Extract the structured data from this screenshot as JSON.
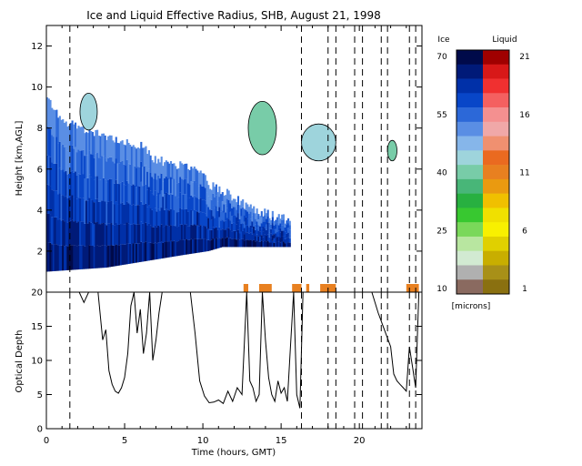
{
  "chart_data": [
    {
      "type": "heatmap",
      "title": "Ice and Liquid Effective Radius, SHB, August 21, 1998",
      "xlabel": "",
      "ylabel": "Height [km,AGL]",
      "xlim": [
        0,
        24
      ],
      "ylim": [
        0,
        13
      ],
      "yticks": [
        2,
        4,
        6,
        8,
        10,
        12
      ],
      "vertical_lines_hours": [
        1.5,
        16.3,
        18.0,
        18.5,
        19.7,
        20.2,
        21.4,
        21.8,
        23.2,
        23.6
      ],
      "colorbar": {
        "ice_label": "Ice",
        "liquid_label": "Liquid",
        "units": "[microns]",
        "ice_ticks": [
          "70",
          "55",
          "40",
          "25",
          "10"
        ],
        "liquid_ticks": [
          "21",
          "16",
          "11",
          "6",
          "1"
        ],
        "ice_colors": [
          "#000a4a",
          "#001a78",
          "#0030a8",
          "#0846c8",
          "#2c68d8",
          "#5a8ee4",
          "#86b6ea",
          "#9ed4dc",
          "#78cca8",
          "#48b678",
          "#28b040",
          "#38c830",
          "#7ad85a",
          "#b8e6a0",
          "#d2ead2",
          "#b0b0b0",
          "#8a6a60"
        ],
        "liquid_colors": [
          "#a00000",
          "#d81818",
          "#f03030",
          "#f46060",
          "#f49090",
          "#f0a8a8",
          "#f09070",
          "#ea6a20",
          "#e88020",
          "#ea9a10",
          "#f0c000",
          "#f0e000",
          "#f8f000",
          "#e0d000",
          "#c8ae00",
          "#a89018",
          "#8a7010"
        ]
      },
      "features": {
        "ice_cloud_base_km": [
          [
            0,
            1.0
          ],
          [
            3.8,
            1.2
          ],
          [
            8.6,
            1.8
          ],
          [
            10.3,
            2.0
          ],
          [
            11.2,
            2.2
          ],
          [
            15.4,
            2.2
          ]
        ],
        "ice_cloud_top_km": [
          [
            0,
            9.5
          ],
          [
            1.0,
            8.4
          ],
          [
            3.0,
            7.8
          ],
          [
            4.5,
            7.5
          ],
          [
            6.0,
            7.1
          ],
          [
            7.0,
            6.4
          ],
          [
            8.0,
            6.3
          ],
          [
            9.5,
            6.0
          ],
          [
            10.5,
            5.2
          ],
          [
            11.5,
            4.8
          ],
          [
            12.5,
            4.3
          ],
          [
            14.0,
            3.8
          ],
          [
            15.5,
            3.5
          ]
        ],
        "liquid_patches_hours": [
          [
            12.6,
            12.9
          ],
          [
            13.6,
            14.4
          ],
          [
            15.7,
            16.3
          ],
          [
            16.6,
            16.8
          ],
          [
            17.5,
            18.5
          ],
          [
            23.0,
            23.8
          ]
        ]
      }
    },
    {
      "type": "line",
      "xlabel": "Time (hours, GMT)",
      "ylabel": "Optical Depth",
      "xlim": [
        0,
        24
      ],
      "ylim": [
        0,
        20
      ],
      "xticks": [
        0,
        5,
        10,
        15,
        20
      ],
      "yticks": [
        0,
        5,
        10,
        15,
        20
      ],
      "series": [
        {
          "x": [
            0.0,
            0.3,
            0.6,
            0.9,
            1.2,
            1.5,
            1.8,
            2.1,
            2.4,
            2.7,
            3.0,
            3.3,
            3.6,
            3.8,
            4.0,
            4.2,
            4.4,
            4.6,
            4.8,
            5.0,
            5.2,
            5.4,
            5.6,
            5.8,
            6.0,
            6.2,
            6.4,
            6.6,
            6.8,
            7.0,
            7.2,
            7.4,
            7.6,
            7.8,
            8.0,
            8.3,
            8.6,
            8.9,
            9.2,
            9.5,
            9.8,
            10.1,
            10.4,
            10.7,
            11.0,
            11.3,
            11.6,
            11.9,
            12.2,
            12.5,
            12.8,
            13.0,
            13.2,
            13.4,
            13.6,
            13.8,
            14.0,
            14.2,
            14.4,
            14.6,
            14.8,
            15.0,
            15.2,
            15.4,
            15.6,
            15.8,
            16.0,
            16.2,
            16.4,
            16.6,
            17.0,
            18.0,
            19.0,
            20.0,
            20.8,
            21.2,
            21.6,
            22.0,
            22.2,
            22.4,
            22.6,
            22.8,
            23.0,
            23.2,
            23.4,
            23.6,
            23.8,
            24.0
          ],
          "y": [
            20.0,
            20.0,
            20.0,
            20.0,
            20.0,
            20.0,
            20.0,
            20.0,
            18.5,
            20.0,
            20.0,
            20.0,
            13.0,
            14.5,
            8.5,
            6.5,
            5.5,
            5.2,
            6.0,
            7.5,
            11.0,
            18.0,
            20.0,
            14.0,
            17.5,
            11.0,
            14.0,
            20.0,
            10.0,
            13.0,
            17.0,
            20.0,
            20.0,
            20.0,
            20.0,
            20.0,
            20.0,
            20.0,
            20.0,
            14.0,
            7.0,
            4.8,
            3.8,
            3.9,
            4.2,
            3.7,
            5.5,
            4.0,
            6.0,
            5.0,
            20.0,
            7.0,
            6.0,
            4.0,
            5.0,
            20.0,
            13.0,
            7.5,
            5.0,
            4.0,
            7.0,
            5.2,
            6.0,
            4.0,
            12.0,
            20.0,
            5.0,
            3.0,
            20.0,
            20.0,
            20.0,
            20.0,
            20.0,
            20.0,
            20.0,
            17.0,
            14.5,
            12.0,
            8.0,
            7.0,
            6.5,
            6.0,
            5.5,
            12.0,
            9.0,
            6.0,
            20.0,
            20.0
          ]
        }
      ]
    }
  ]
}
